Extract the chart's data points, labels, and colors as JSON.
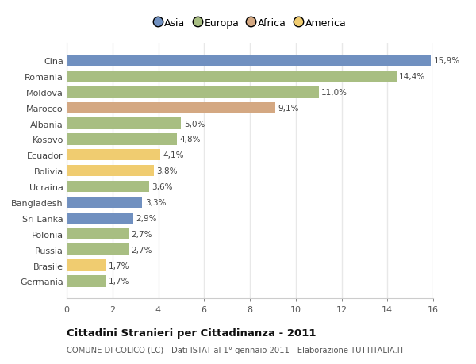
{
  "countries": [
    "Cina",
    "Romania",
    "Moldova",
    "Marocco",
    "Albania",
    "Kosovo",
    "Ecuador",
    "Bolivia",
    "Ucraina",
    "Bangladesh",
    "Sri Lanka",
    "Polonia",
    "Russia",
    "Brasile",
    "Germania"
  ],
  "values": [
    15.9,
    14.4,
    11.0,
    9.1,
    5.0,
    4.8,
    4.1,
    3.8,
    3.6,
    3.3,
    2.9,
    2.7,
    2.7,
    1.7,
    1.7
  ],
  "labels": [
    "15,9%",
    "14,4%",
    "11,0%",
    "9,1%",
    "5,0%",
    "4,8%",
    "4,1%",
    "3,8%",
    "3,6%",
    "3,3%",
    "2,9%",
    "2,7%",
    "2,7%",
    "1,7%",
    "1,7%"
  ],
  "colors": [
    "#7090c0",
    "#a8be82",
    "#a8be82",
    "#d4a882",
    "#a8be82",
    "#a8be82",
    "#f0cc70",
    "#f0cc70",
    "#a8be82",
    "#7090c0",
    "#7090c0",
    "#a8be82",
    "#a8be82",
    "#f0cc70",
    "#a8be82"
  ],
  "continents": [
    "Asia",
    "Europa",
    "Africa",
    "America"
  ],
  "legend_colors": [
    "#7090c0",
    "#a8be82",
    "#d4a882",
    "#f0cc70"
  ],
  "title": "Cittadini Stranieri per Cittadinanza - 2011",
  "subtitle": "COMUNE DI COLICO (LC) - Dati ISTAT al 1° gennaio 2011 - Elaborazione TUTTITALIA.IT",
  "xlim": [
    0,
    16
  ],
  "xticks": [
    0,
    2,
    4,
    6,
    8,
    10,
    12,
    14,
    16
  ],
  "background_color": "#ffffff",
  "plot_bg_color": "#ffffff",
  "grid_color": "#e8e8e8"
}
